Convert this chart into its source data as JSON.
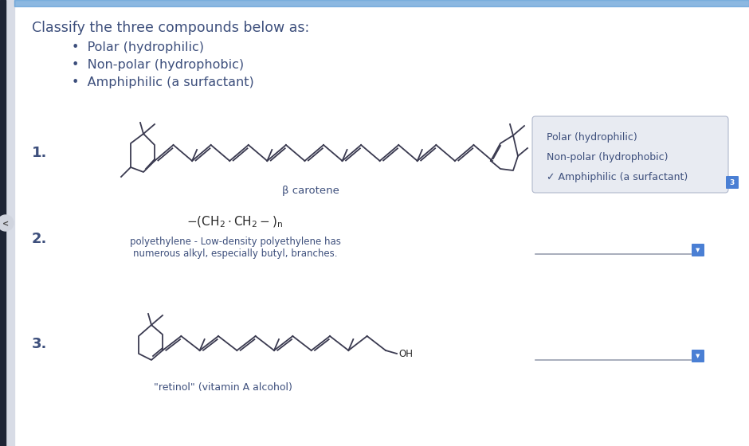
{
  "main_bg": "#f2f3f6",
  "white_bg": "#ffffff",
  "title": "Classify the three compounds below as:",
  "bullets": [
    "Polar (hydrophilic)",
    "Non-polar (hydrophobic)",
    "Amphiphilic (a surfactant)"
  ],
  "labels": [
    "1.",
    "2.",
    "3."
  ],
  "compound1_label": "β carotene",
  "compound2_label": "polyethylene - Low-density polyethylene has\nnumerous alkyl, especially butyl, branches.",
  "compound3_label": "\"retinol\" (vitamin A alcohol)",
  "dropdown1_options": [
    "Polar (hydrophilic)",
    "Non-polar (hydrophobic)",
    "✓ Amphiphilic (a surfactant)"
  ],
  "dropdown1_selected": 2,
  "text_color": "#3d4f7c",
  "dark_text": "#2a2a2a",
  "dropdown_bg": "#e8ebf2",
  "dropdown_border": "#b8c0d4",
  "blue_btn_color": "#4a7fd4",
  "left_bar_color": "#1e2535",
  "top_bar_color": "#5b9bd5",
  "molecule_color": "#3a3a50"
}
